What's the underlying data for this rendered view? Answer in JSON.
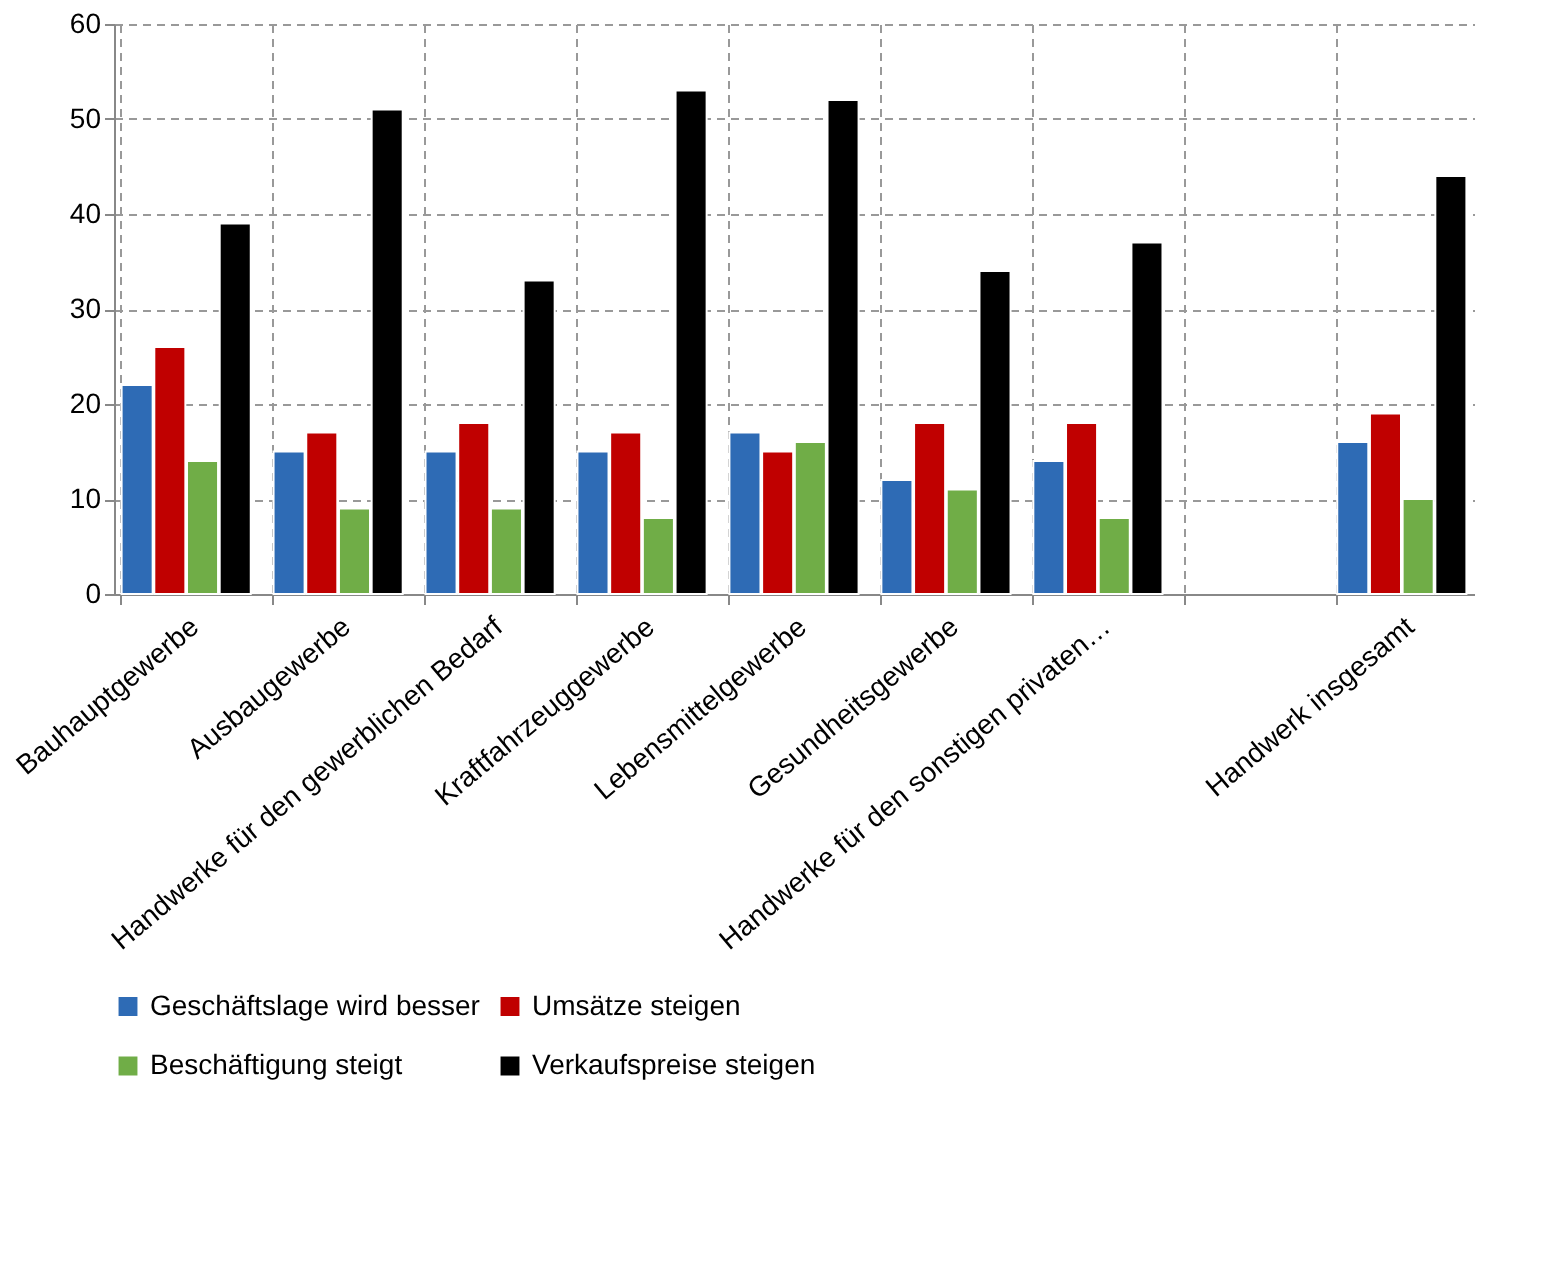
{
  "chart_data": {
    "type": "bar",
    "categories": [
      "Bauhauptgewerbe",
      "Ausbaugewerbe",
      "Handwerke für den gewerblichen Bedarf",
      "Kraftfahrzeuggewerbe",
      "Lebensmittelgewerbe",
      "Gesundheitsgewerbe",
      "Handwerke für den sonstigen privaten…",
      null,
      "Handwerk insgesamt"
    ],
    "series": [
      {
        "name": "Geschäftslage wird besser",
        "color": "#2e6bb5",
        "values": [
          22,
          15,
          15,
          15,
          17,
          12,
          14,
          null,
          16
        ]
      },
      {
        "name": "Umsätze steigen",
        "color": "#c00000",
        "values": [
          26,
          17,
          18,
          17,
          15,
          18,
          18,
          null,
          19
        ]
      },
      {
        "name": "Beschäftigung steigt",
        "color": "#70ad47",
        "values": [
          14,
          9,
          9,
          8,
          16,
          11,
          8,
          null,
          10
        ]
      },
      {
        "name": "Verkaufspreise steigen",
        "color": "#000000",
        "values": [
          39,
          51,
          33,
          53,
          52,
          34,
          37,
          null,
          44
        ]
      }
    ],
    "ylim": [
      0,
      60
    ],
    "yticks": [
      0,
      10,
      20,
      30,
      40,
      50,
      60
    ],
    "grid": true,
    "legend": "bottom"
  }
}
